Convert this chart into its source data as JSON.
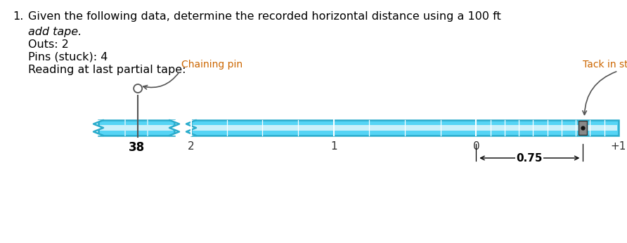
{
  "title_line1": "Given the following data, determine the recorded horizontal distance using a 100 ft",
  "title_line2": "add tape.",
  "outs": "Outs: 2",
  "pins": "Pins (stuck): 4",
  "reading": "Reading at last partial tape:",
  "bg_color": "#ffffff",
  "tape_color": "#55d4f5",
  "tape_border_color": "#2aaccc",
  "tape_inner_color": "#caf0fa",
  "label_38": "38",
  "label_2": "2",
  "label_1": "1",
  "label_0": "0",
  "label_p1": "+1",
  "label_075": "0.75",
  "chaining_pin_label": "Chaining pin",
  "tack_label": "Tack in stake",
  "annotation_color": "#cc6600",
  "number_color": "#333333",
  "bold_38_color": "#000000",
  "text_color": "#222222",
  "pin_color": "#555555",
  "stake_color": "#888888",
  "stake_border": "#333333"
}
